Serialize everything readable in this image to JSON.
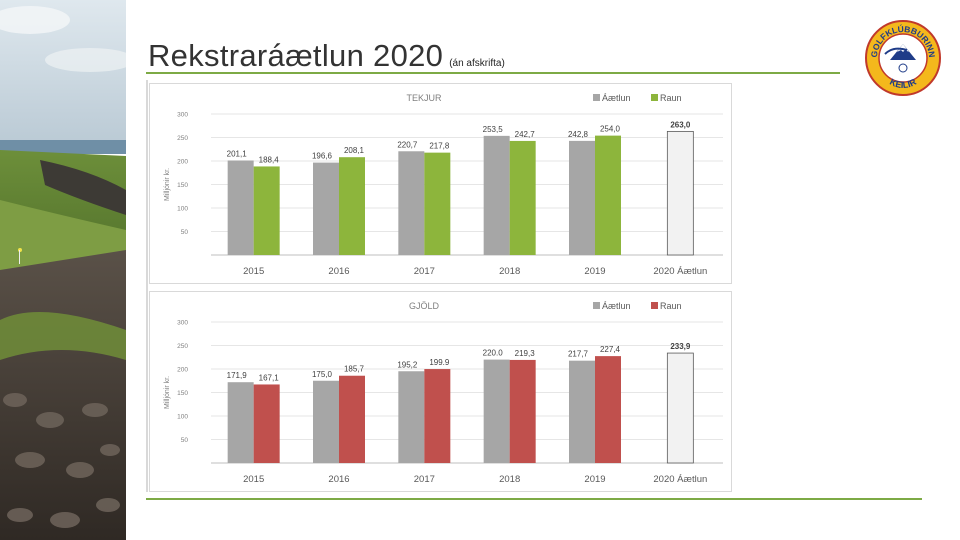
{
  "page": {
    "title": "Rekstraráætlun 2020",
    "subtitle": "(án afskrifta)"
  },
  "logo": {
    "text_top": "GOLFKLÚBBURINN",
    "text_bottom": "KEILIR"
  },
  "colors": {
    "accent_rule": "#7daa45",
    "plan_bar": "#a6a6a6",
    "income_actual": "#8db53c",
    "expense_actual": "#c0504d",
    "forecast_bar": "#f2f2f2",
    "gridline": "#e6e6e6"
  },
  "chart_data": [
    {
      "type": "bar",
      "title": "TEKJUR",
      "ylabel": "Milljónir kr.",
      "ylim": [
        0,
        300
      ],
      "yticks": [
        50,
        100,
        150,
        200,
        250,
        300
      ],
      "grid": true,
      "legend_position": "top-right",
      "categories": [
        "2015",
        "2016",
        "2017",
        "2018",
        "2019",
        "2020 Áætlun"
      ],
      "series": [
        {
          "name": "Áætlun",
          "values": [
            201.1,
            196.6,
            220.7,
            253.5,
            242.8,
            263.0
          ],
          "labels": [
            "201,1",
            "196,6",
            "220,7",
            "253,5",
            "242,8",
            "263,0"
          ]
        },
        {
          "name": "Raun",
          "values": [
            188.4,
            208.1,
            217.8,
            242.7,
            254.0,
            null
          ],
          "labels": [
            "188,4",
            "208,1",
            "217,8",
            "242,7",
            "254,0",
            ""
          ]
        }
      ]
    },
    {
      "type": "bar",
      "title": "GJÖLD",
      "ylabel": "Milljónir kr.",
      "ylim": [
        0,
        300
      ],
      "yticks": [
        50,
        100,
        150,
        200,
        250,
        300
      ],
      "grid": true,
      "legend_position": "top-right",
      "categories": [
        "2015",
        "2016",
        "2017",
        "2018",
        "2019",
        "2020 Áætlun"
      ],
      "series": [
        {
          "name": "Áætlun",
          "values": [
            171.9,
            175.0,
            195.2,
            220.0,
            217.7,
            233.9
          ],
          "labels": [
            "171,9",
            "175,0",
            "195,2",
            "220.0",
            "217,7",
            "233,9"
          ]
        },
        {
          "name": "Raun",
          "values": [
            167.1,
            185.7,
            199.9,
            219.3,
            227.4,
            null
          ],
          "labels": [
            "167,1",
            "185,7",
            "199.9",
            "219,3",
            "227,4",
            ""
          ]
        }
      ]
    }
  ]
}
